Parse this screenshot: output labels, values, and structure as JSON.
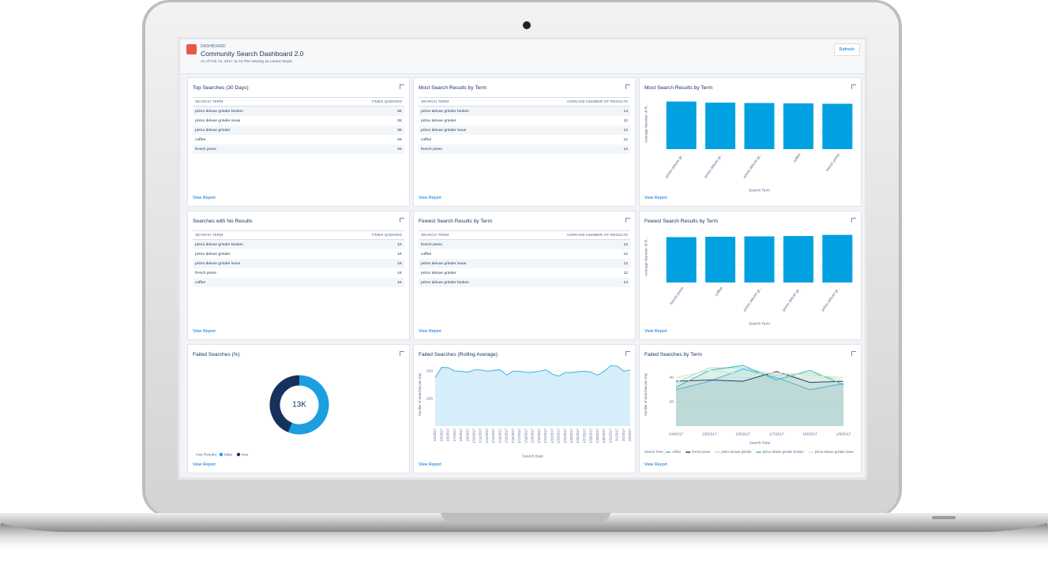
{
  "header": {
    "eyebrow": "DASHBOARD",
    "title": "Community Search Dashboard 2.0",
    "subtitle": "As of Feb 14, 2017 11:44 PM Viewing as Lauren Boyle",
    "button": "Refresh"
  },
  "panels": [
    {
      "title": "Top Searches (30 Days)",
      "link": "View Report",
      "table": {
        "columns": [
          "SEARCH TERM",
          "TIMES QUERIED"
        ],
        "rows": [
          [
            "primo deluxe grinder broken",
            "3K"
          ],
          [
            "primo deluxe grinder issue",
            "3K"
          ],
          [
            "primo deluxe grinder",
            "3K"
          ],
          [
            "coffee",
            "2K"
          ],
          [
            "french press",
            "2K"
          ]
        ]
      }
    },
    {
      "title": "Most Search Results by Term",
      "link": "View Report",
      "table": {
        "columns": [
          "SEARCH TERM",
          "AVERAGE NUMBER OF RESULTS"
        ],
        "rows": [
          [
            "primo deluxe grinder broken",
            13
          ],
          [
            "primo deluxe grinder",
            12
          ],
          [
            "primo deluxe grinder issue",
            12
          ],
          [
            "coffee",
            12
          ],
          [
            "french press",
            12
          ]
        ]
      }
    },
    {
      "title": "Most Search Results by Term",
      "link": "View Report",
      "chart": {
        "type": "bar",
        "categories": [
          "primo deluxe gr...",
          "primo deluxe gr...",
          "primo deluxe gr...",
          "coffee",
          "french press"
        ],
        "values": [
          12.8,
          12.5,
          12.4,
          12.3,
          12.2
        ],
        "color": "#00a1e0",
        "ylim": [
          0,
          14
        ],
        "x_label": "Search Term",
        "y_label": "Average Number of R..."
      }
    },
    {
      "title": "Searches with No Results",
      "link": "View Report",
      "table": {
        "columns": [
          "SEARCH TERM",
          "TIMES QUERIED"
        ],
        "rows": [
          [
            "primo deluxe grinder broken",
            "1K"
          ],
          [
            "primo deluxe grinder",
            "1K"
          ],
          [
            "primo deluxe grinder issue",
            "1K"
          ],
          [
            "french press",
            "1K"
          ],
          [
            "coffee",
            "1K"
          ]
        ]
      }
    },
    {
      "title": "Fewest Search Results by Term",
      "link": "View Report",
      "table": {
        "columns": [
          "SEARCH TERM",
          "AVERAGE NUMBER OF RESULTS"
        ],
        "rows": [
          [
            "french press",
            12
          ],
          [
            "coffee",
            12
          ],
          [
            "primo deluxe grinder issue",
            12
          ],
          [
            "primo deluxe grinder",
            12
          ],
          [
            "primo deluxe grinder broken",
            13
          ]
        ]
      }
    },
    {
      "title": "Fewest Search Results by Term",
      "link": "View Report",
      "chart": {
        "type": "bar",
        "categories": [
          "french press",
          "coffee",
          "primo deluxe gr...",
          "primo deluxe gr...",
          "primo deluxe gr..."
        ],
        "values": [
          12.2,
          12.3,
          12.4,
          12.5,
          12.8
        ],
        "color": "#00a1e0",
        "ylim": [
          0,
          14
        ],
        "x_label": "Search Term",
        "y_label": "Average Number of R..."
      }
    },
    {
      "title": "Failed Searches (%)",
      "link": "View Report",
      "chart": {
        "type": "donut",
        "center": {
          "value": 13000,
          "label": "13K"
        },
        "legend_title": "Has Results",
        "series": [
          {
            "name": "false",
            "color": "#1b9fdf",
            "value": 7300
          },
          {
            "name": "true",
            "color": "#16325c",
            "value": 5700
          }
        ]
      }
    },
    {
      "title": "Failed Searches (Rolling Average)",
      "link": "View Report",
      "chart": {
        "type": "area",
        "x": [
          "1/4/2017",
          "1/5/2017",
          "1/6/2017",
          "1/7/2017",
          "1/8/2017",
          "1/9/2017",
          "1/10/2017",
          "1/11/2017",
          "1/12/2017",
          "1/13/2017",
          "1/14/2017",
          "1/15/2017",
          "1/16/2017",
          "1/17/2017",
          "1/18/2017",
          "1/19/2017",
          "1/20/2017",
          "1/21/2017",
          "1/22/2017",
          "1/23/2017",
          "1/24/2017",
          "1/25/2017",
          "1/26/2017",
          "1/27/2017",
          "1/28/2017",
          "1/29/2017",
          "1/30/2017",
          "1/31/2017",
          "2/1/2017",
          "2/2/2017",
          "2/3/2017"
        ],
        "values": [
          177,
          214,
          213,
          201,
          200,
          196,
          205,
          205,
          200,
          203,
          205,
          186,
          200,
          200,
          195,
          196,
          200,
          205,
          190,
          182,
          195,
          195,
          198,
          200,
          196,
          186,
          200,
          220,
          219,
          200,
          205
        ],
        "color": "#3cb5e5",
        "ylim": [
          0,
          230
        ],
        "yticks": [
          100,
          200
        ],
        "x_label": "Search Date",
        "y_label": "Number of Searches per Day"
      }
    },
    {
      "title": "Failed Searches by Term",
      "link": "View Report",
      "chart": {
        "type": "line",
        "x": [
          "1/4/2017",
          "1/5/2017",
          "1/6/2017",
          "1/7/2017",
          "1/8/2017",
          "1/9/2017"
        ],
        "series": [
          {
            "name": "coffee",
            "color": "#4aaedb",
            "values": [
              30,
              37,
              47,
              40,
              30,
              35
            ]
          },
          {
            "name": "french press",
            "color": "#2d3e5e",
            "values": [
              37,
              38,
              37,
              45,
              36,
              37
            ]
          },
          {
            "name": "primo deluxe grinder",
            "color": "#9fe0ee",
            "values": [
              36,
              48,
              48,
              42,
              44,
              37
            ]
          },
          {
            "name": "primo deluxe grinder broken",
            "color": "#3dbdb0",
            "values": [
              32,
              46,
              50,
              38,
              46,
              34
            ]
          },
          {
            "name": "primo deluxe grinder issue",
            "color": "#e8e2a8",
            "values": [
              40,
              46,
              43,
              44,
              42,
              40
            ]
          }
        ],
        "ylim": [
          0,
          52
        ],
        "yticks": [
          20,
          40
        ],
        "x_label": "Search Date",
        "y_label": "Number of Searches per Day",
        "legend_title": "Search Term"
      }
    }
  ]
}
